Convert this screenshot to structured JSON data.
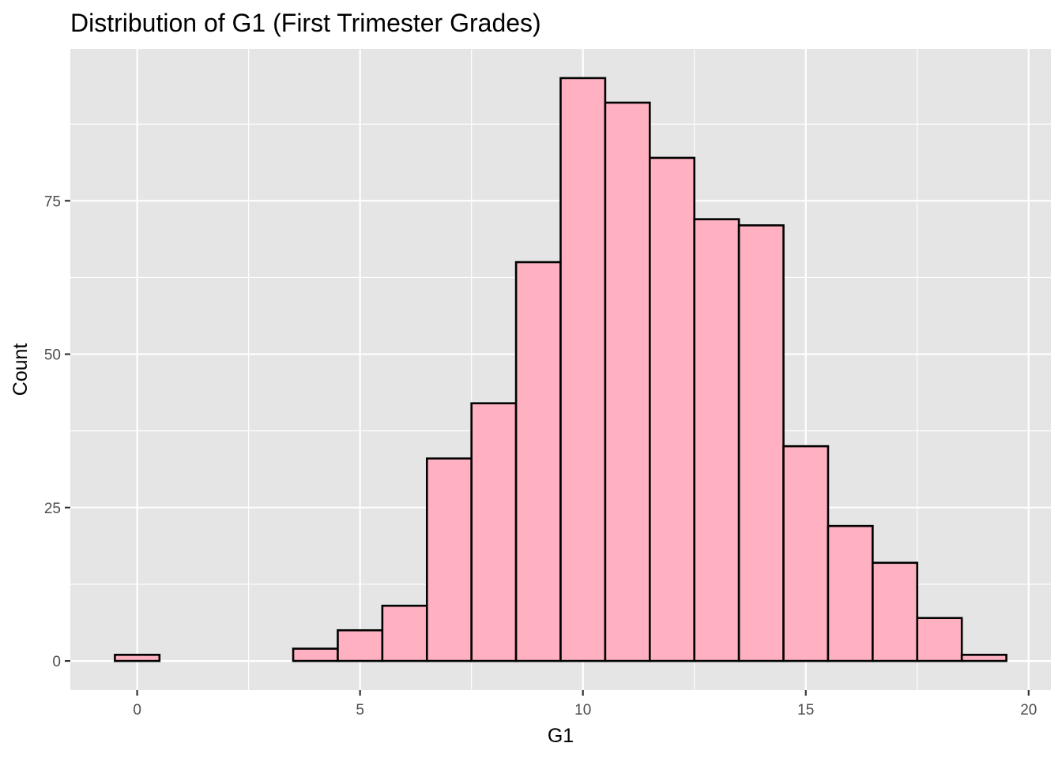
{
  "chart_data": {
    "type": "bar",
    "title": "Distribution of G1 (First Trimester Grades)",
    "xlabel": "G1",
    "ylabel": "Count",
    "bins": [
      {
        "x": 0,
        "count": 1
      },
      {
        "x": 1,
        "count": 0
      },
      {
        "x": 2,
        "count": 0
      },
      {
        "x": 3,
        "count": 0
      },
      {
        "x": 4,
        "count": 2
      },
      {
        "x": 5,
        "count": 5
      },
      {
        "x": 6,
        "count": 9
      },
      {
        "x": 7,
        "count": 33
      },
      {
        "x": 8,
        "count": 42
      },
      {
        "x": 9,
        "count": 65
      },
      {
        "x": 10,
        "count": 95
      },
      {
        "x": 11,
        "count": 91
      },
      {
        "x": 12,
        "count": 82
      },
      {
        "x": 13,
        "count": 72
      },
      {
        "x": 14,
        "count": 71
      },
      {
        "x": 15,
        "count": 35
      },
      {
        "x": 16,
        "count": 22
      },
      {
        "x": 17,
        "count": 16
      },
      {
        "x": 18,
        "count": 7
      },
      {
        "x": 19,
        "count": 1
      }
    ],
    "bin_width": 1,
    "xlim": [
      -1.5,
      20.5
    ],
    "ylim": [
      -4.75,
      99.75
    ],
    "x_ticks": [
      0,
      5,
      10,
      15,
      20
    ],
    "x_tick_labels": [
      "0",
      "5",
      "10",
      "15",
      "20"
    ],
    "y_ticks": [
      0,
      25,
      50,
      75
    ],
    "y_tick_labels": [
      "0",
      "25",
      "50",
      "75"
    ],
    "x_minor": [
      2.5,
      7.5,
      12.5,
      17.5
    ],
    "y_minor": [
      12.5,
      37.5,
      62.5,
      87.5
    ],
    "grid": true,
    "colors": {
      "bar_fill": "#FFB1C1",
      "bar_stroke": "#000000",
      "panel_bg": "#E5E5E5",
      "grid": "#FFFFFF"
    }
  }
}
